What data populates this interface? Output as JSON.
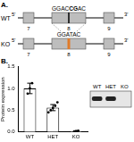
{
  "panel_a": {
    "label": "A.",
    "five_prime": "5'",
    "three_prime": "3'",
    "rows": [
      {
        "name": "WT",
        "sequence_parts": [
          {
            "text": "GGAC"
          },
          {
            "text": "CG",
            "bold": true
          },
          {
            "text": "AC"
          }
        ],
        "exons": [
          "7",
          "8",
          "9"
        ]
      },
      {
        "name": "KO",
        "sequence_parts": [
          {
            "text": "GGATAC"
          }
        ],
        "exons": [
          "7",
          "8",
          "9"
        ],
        "color": "#e07b2a"
      }
    ]
  },
  "panel_b": {
    "label": "B.",
    "inset": {
      "lanes": [
        "WT",
        "HET",
        "KO"
      ],
      "band_present": [
        true,
        true,
        false
      ]
    }
  },
  "chart_data": {
    "type": "bar",
    "y_label": "Protein expression",
    "categories": [
      "WT",
      "HET",
      "KO"
    ],
    "values": [
      1.0,
      0.56,
      0.02
    ],
    "errors": [
      0.12,
      0.07,
      0.01
    ],
    "points": [
      [
        0.88,
        1.0,
        1.12
      ],
      [
        0.45,
        0.5,
        0.55,
        0.6,
        0.68
      ],
      [
        0.0,
        0.02,
        0.03
      ]
    ],
    "color": "#ffffff",
    "ylim": [
      0,
      1.5
    ],
    "yticks": [
      {
        "value": 0,
        "label": "0.0"
      },
      {
        "value": 0.5,
        "label": "0.5"
      },
      {
        "value": 1,
        "label": "1.0"
      },
      {
        "value": 1.5,
        "label": "1.5"
      }
    ],
    "grid": false
  }
}
